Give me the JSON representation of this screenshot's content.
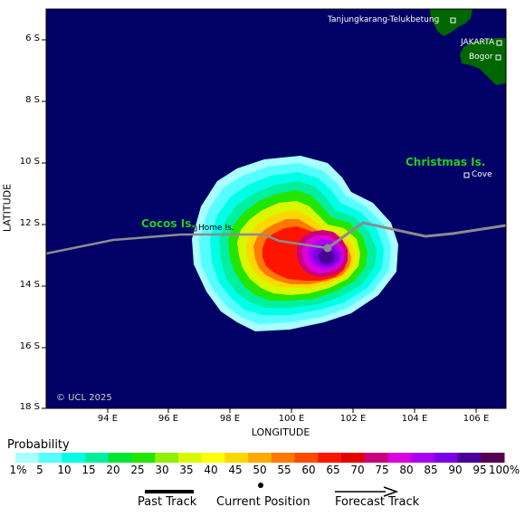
{
  "map": {
    "xlabel": "LONGITUDE",
    "ylabel": "LATITUDE",
    "lon_ticks": [
      "94 E",
      "96 E",
      "98 E",
      "100 E",
      "102 E",
      "104 E",
      "106 E"
    ],
    "lat_ticks": [
      "6 S",
      "8 S",
      "10 S",
      "12 S",
      "14 S",
      "16 S",
      "18 S"
    ],
    "credit": "© UCL 2025",
    "ocean_color": "#000066",
    "land_color": "#006600",
    "track_color": "#8c8c8c"
  },
  "places": {
    "tanjung": "Tanjungkarang-Telukbetung",
    "jakarta": "JAKARTA",
    "bogor": "Bogor",
    "christmas": "Christmas Is.",
    "cove": "Cove",
    "cocos": "Cocos Is.",
    "home": "Home Is."
  },
  "legend": {
    "title": "Probability",
    "ticks": [
      "1%",
      "5",
      "10",
      "15",
      "20",
      "25",
      "30",
      "35",
      "40",
      "45",
      "50",
      "55",
      "60",
      "65",
      "70",
      "75",
      "80",
      "85",
      "90",
      "95",
      "100%"
    ],
    "colors": [
      "#aaffff",
      "#55ffff",
      "#00ffe6",
      "#00f0a0",
      "#00e632",
      "#22e600",
      "#90f000",
      "#d8f800",
      "#ffff00",
      "#ffd700",
      "#ffaa00",
      "#ff7800",
      "#ff4b00",
      "#ff1400",
      "#e60000",
      "#c8007d",
      "#dc00dc",
      "#aa00f0",
      "#7a00e6",
      "#4a0096",
      "#550055"
    ],
    "past_track": "Past Track",
    "current_position": "Current Position",
    "forecast_track": "Forecast Track"
  }
}
